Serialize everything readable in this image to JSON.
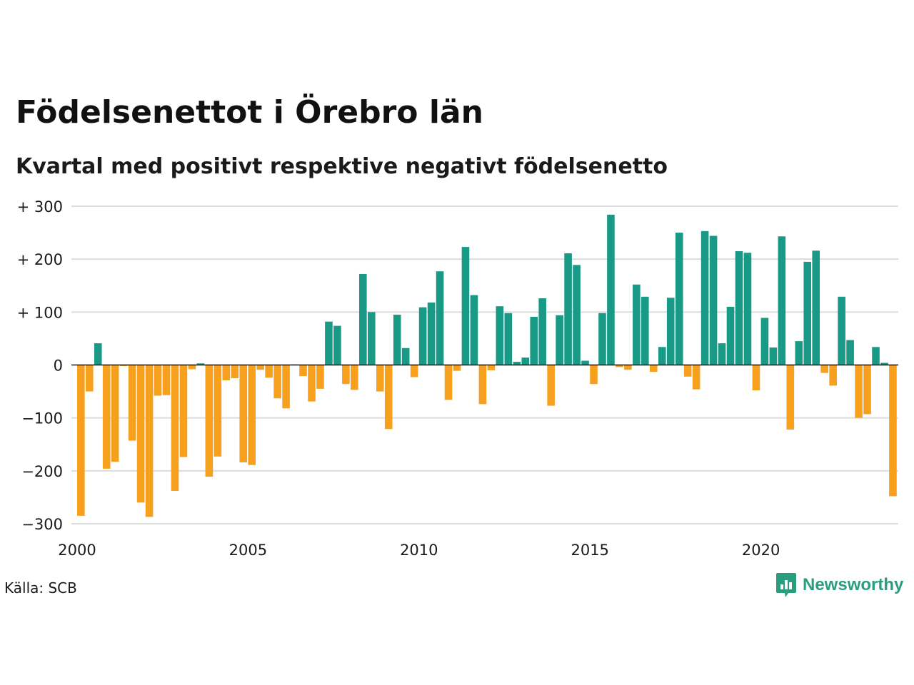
{
  "header": {
    "title": "Födelsenettot i Örebro län",
    "subtitle": "Kvartal med positivt respektive negativt födelsenetto"
  },
  "footer": {
    "source": "Källa: SCB",
    "brand": "Newsworthy",
    "brand_icon": "bar-chart-speech-bubble-icon"
  },
  "colors": {
    "positive": "#199a86",
    "negative": "#f6a01e",
    "grid": "#dcdcdc",
    "brand": "#2a9d7f"
  },
  "chart_data": {
    "type": "bar",
    "ylim": [
      -300,
      300
    ],
    "y_ticks": [
      300,
      200,
      100,
      0,
      -100,
      -200,
      -300
    ],
    "y_tick_labels": [
      "+ 300",
      "+ 200",
      "+ 100",
      "0",
      "−100",
      "−200",
      "−300"
    ],
    "x_ticks": [
      2000,
      2005,
      2010,
      2015,
      2020
    ],
    "x_tick_labels": [
      "2000",
      "2005",
      "2010",
      "2015",
      "2020"
    ],
    "grid": "horizontal",
    "values": [
      -285,
      -50,
      41,
      -196,
      -183,
      -2,
      -143,
      -260,
      -287,
      -58,
      -57,
      -238,
      -174,
      -8,
      3,
      -211,
      -173,
      -29,
      -25,
      -184,
      -189,
      -9,
      -24,
      -63,
      -82,
      1,
      -21,
      -69,
      -45,
      82,
      74,
      -36,
      -47,
      172,
      100,
      -50,
      -121,
      95,
      32,
      -23,
      109,
      118,
      177,
      -66,
      -11,
      223,
      132,
      -74,
      -10,
      111,
      98,
      6,
      14,
      91,
      126,
      -77,
      94,
      211,
      189,
      8,
      -36,
      98,
      284,
      -4,
      -9,
      152,
      129,
      -13,
      34,
      127,
      250,
      -22,
      -46,
      253,
      244,
      41,
      110,
      215,
      212,
      -48,
      89,
      33,
      243,
      -122,
      45,
      195,
      216,
      -15,
      -39,
      129,
      47,
      -100,
      -93,
      34,
      4,
      -248
    ]
  }
}
